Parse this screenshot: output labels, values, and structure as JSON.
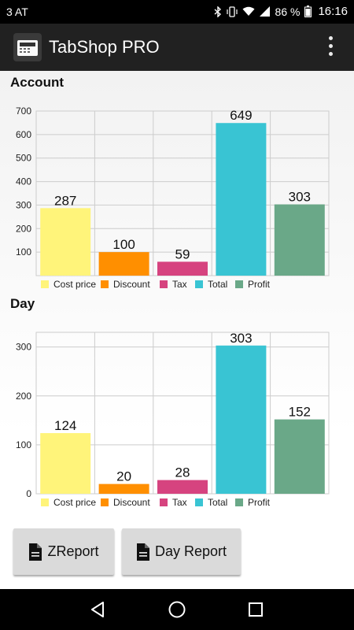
{
  "status_bar": {
    "carrier": "3 AT",
    "battery_percent": "86 %",
    "time": "16:16",
    "icons": [
      "bluetooth-icon",
      "vibrate-icon",
      "wifi-icon",
      "signal-icon",
      "battery-icon"
    ]
  },
  "app_bar": {
    "title": "TabShop PRO",
    "app_icon": "cash-register-icon",
    "menu_icon": "more-vert-icon"
  },
  "sections": {
    "account_title": "Account",
    "day_title": "Day"
  },
  "colors": {
    "cost_price": "#fff47a",
    "discount": "#ff8f00",
    "tax": "#d6437f",
    "total": "#39c4d3",
    "profit": "#6aa888",
    "grid": "#cccccc"
  },
  "chart_data": [
    {
      "type": "bar",
      "title": "Account",
      "categories": [
        "Cost price",
        "Discount",
        "Tax",
        "Total",
        "Profit"
      ],
      "values": [
        287,
        100,
        59,
        649,
        303
      ],
      "ylim": [
        0,
        700
      ],
      "yticks": [
        100,
        200,
        300,
        400,
        500,
        600,
        700
      ],
      "legend": [
        "Cost price",
        "Discount",
        "Tax",
        "Total",
        "Profit"
      ],
      "legend_position": "bottom",
      "grid": true
    },
    {
      "type": "bar",
      "title": "Day",
      "categories": [
        "Cost price",
        "Discount",
        "Tax",
        "Total",
        "Profit"
      ],
      "values": [
        124,
        20,
        28,
        303,
        152
      ],
      "ylim": [
        0,
        330
      ],
      "yticks": [
        0,
        100,
        200,
        300
      ],
      "legend": [
        "Cost price",
        "Discount",
        "Tax",
        "Total",
        "Profit"
      ],
      "legend_position": "bottom",
      "grid": true
    }
  ],
  "buttons": {
    "zreport": "ZReport",
    "day_report": "Day Report",
    "icon": "document-icon"
  },
  "nav_bar": {
    "back": "back-icon",
    "home": "home-icon",
    "recents": "recents-icon"
  }
}
